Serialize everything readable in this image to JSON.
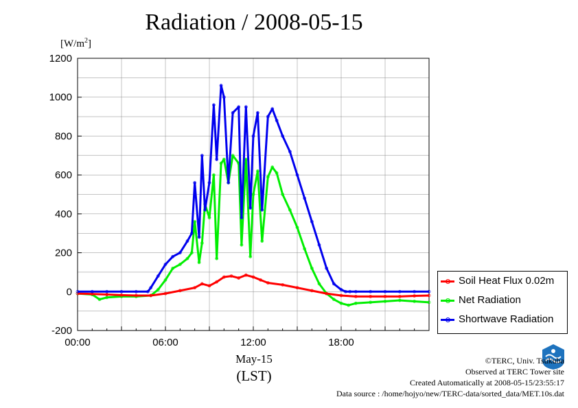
{
  "title": "Radiation / 2008-05-15",
  "unit": {
    "text": "[W/m",
    "sup": "2",
    "close": "]"
  },
  "xaxis": {
    "date_label": "May-15",
    "tz_label": "(LST)"
  },
  "credits": {
    "line1": "©TERC, Univ. Tsukuba",
    "line2": "Observed at TERC Tower site",
    "line3": "Created Automatically at 2008-05-15/23:55:17",
    "line4": "Data source : /home/hojyo/new/TERC-data/sorted_data/MET.10s.dat"
  },
  "logo_text": "TERC",
  "chart_data": {
    "type": "line",
    "title": "Radiation / 2008-05-15",
    "xlabel": "(LST)",
    "ylabel": "[W/m2]",
    "xlim": [
      0,
      24
    ],
    "ylim": [
      -200,
      1200
    ],
    "yticks": [
      -200,
      0,
      200,
      400,
      600,
      800,
      1000,
      1200
    ],
    "xticks": [
      0,
      6,
      12,
      18
    ],
    "xtick_labels": [
      "00:00",
      "06:00",
      "12:00",
      "18:00"
    ],
    "grid": true,
    "legend_position": "bottom-right outside",
    "series": [
      {
        "name": "Soil Heat Flux 0.02m",
        "color": "#ff0000",
        "x": [
          0,
          1,
          2,
          3,
          4,
          5,
          6,
          7,
          8,
          8.5,
          9,
          9.5,
          10,
          10.5,
          11,
          11.5,
          12,
          12.5,
          13,
          14,
          15,
          16,
          17,
          18,
          19,
          20,
          21,
          22,
          23,
          24
        ],
        "y": [
          -10,
          -12,
          -15,
          -18,
          -20,
          -20,
          -10,
          5,
          20,
          40,
          30,
          50,
          75,
          80,
          70,
          85,
          75,
          60,
          45,
          35,
          20,
          5,
          -10,
          -20,
          -25,
          -25,
          -25,
          -25,
          -22,
          -20
        ]
      },
      {
        "name": "Net Radiation",
        "color": "#00ee00",
        "x": [
          0,
          1,
          1.5,
          2,
          3,
          4,
          5,
          5.5,
          6,
          6.5,
          7,
          7.5,
          7.8,
          8,
          8.3,
          8.5,
          8.7,
          9,
          9.3,
          9.5,
          9.8,
          10,
          10.3,
          10.6,
          11,
          11.2,
          11.5,
          11.8,
          12,
          12.3,
          12.6,
          13,
          13.3,
          13.6,
          14,
          14.5,
          15,
          15.5,
          16,
          16.5,
          17,
          17.5,
          18,
          18.5,
          19,
          20,
          21,
          22,
          23,
          24
        ],
        "y": [
          -10,
          -15,
          -40,
          -30,
          -25,
          -25,
          -20,
          10,
          60,
          120,
          140,
          170,
          200,
          360,
          150,
          250,
          450,
          380,
          600,
          170,
          660,
          680,
          560,
          700,
          660,
          240,
          680,
          180,
          500,
          620,
          260,
          590,
          640,
          610,
          500,
          420,
          330,
          220,
          120,
          40,
          -10,
          -40,
          -60,
          -70,
          -60,
          -55,
          -50,
          -45,
          -50,
          -55
        ]
      },
      {
        "name": "Shortwave Radiation",
        "color": "#0000ee",
        "x": [
          0,
          1,
          2,
          3,
          4,
          4.8,
          5,
          5.5,
          6,
          6.5,
          7,
          7.5,
          7.8,
          8,
          8.3,
          8.5,
          8.7,
          9,
          9.3,
          9.5,
          9.8,
          10,
          10.3,
          10.6,
          11,
          11.2,
          11.5,
          11.8,
          12,
          12.3,
          12.6,
          13,
          13.3,
          13.6,
          14,
          14.5,
          15,
          15.5,
          16,
          16.5,
          17,
          17.5,
          18,
          18.3,
          18.6,
          19,
          20,
          21,
          22,
          23,
          24
        ],
        "y": [
          0,
          0,
          0,
          0,
          0,
          0,
          20,
          80,
          140,
          180,
          200,
          260,
          300,
          560,
          280,
          700,
          420,
          560,
          960,
          680,
          1060,
          1000,
          560,
          920,
          950,
          380,
          950,
          430,
          800,
          920,
          420,
          900,
          940,
          880,
          800,
          720,
          600,
          480,
          360,
          240,
          120,
          40,
          10,
          0,
          0,
          0,
          0,
          0,
          0,
          0,
          0
        ]
      }
    ]
  }
}
